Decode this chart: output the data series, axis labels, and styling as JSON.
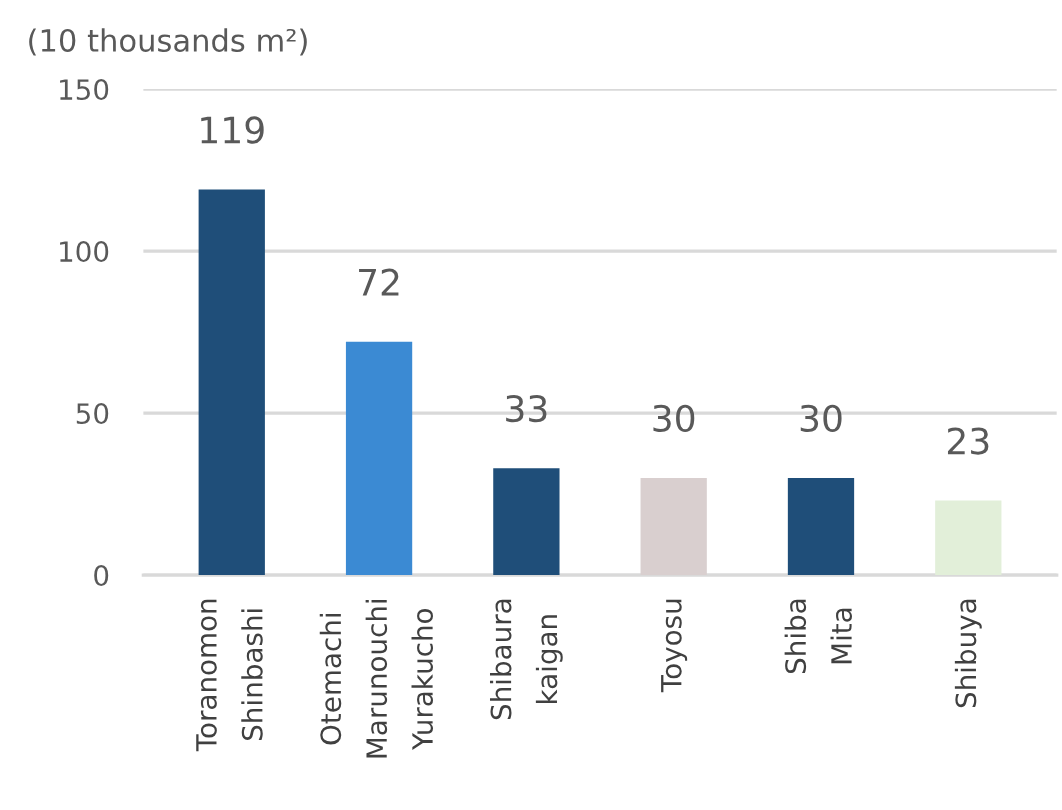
{
  "chart_data": {
    "type": "bar",
    "ylabel": "(10 thousands m²)",
    "categories": [
      "Toranomon\nShinbashi",
      "Otemachi\nMarunouchi\nYurakucho",
      "Shibaura\nkaigan",
      "Toyosu",
      "Shiba\nMita",
      "Shibuya"
    ],
    "values": [
      119,
      72,
      33,
      30,
      30,
      23
    ],
    "colors": [
      "#1f4e79",
      "#3b8ad3",
      "#1f4e79",
      "#d9cfcf",
      "#1f4e79",
      "#e2efd9"
    ],
    "ylim": [
      0,
      150
    ],
    "yticks": [
      0,
      50,
      100,
      150
    ],
    "grid": "y",
    "data_labels": true
  }
}
